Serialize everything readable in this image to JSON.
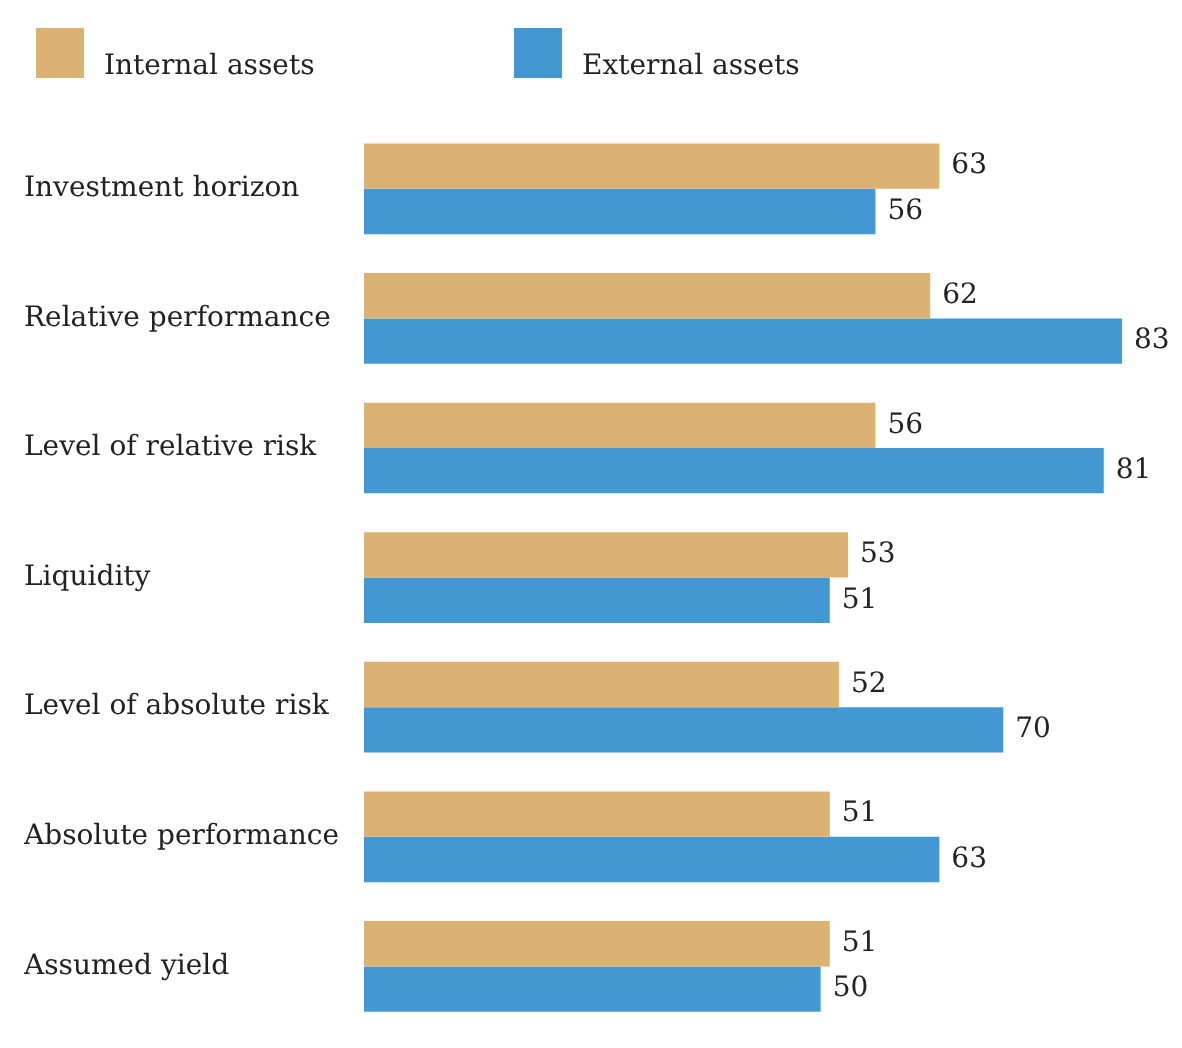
{
  "chart_data": {
    "type": "bar",
    "orientation": "horizontal",
    "categories": [
      "Investment horizon",
      "Relative performance",
      "Level of relative risk",
      "Liquidity",
      "Level of absolute risk",
      "Absolute performance",
      "Assumed yield"
    ],
    "series": [
      {
        "name": "Internal assets",
        "color": "#dcb274",
        "values": [
          63,
          62,
          56,
          53,
          52,
          51,
          51
        ]
      },
      {
        "name": "External assets",
        "color": "#4398d3",
        "values": [
          56,
          83,
          81,
          51,
          70,
          63,
          50
        ]
      }
    ],
    "data_labels": true,
    "legend": "top left",
    "tick_labels": "y"
  }
}
